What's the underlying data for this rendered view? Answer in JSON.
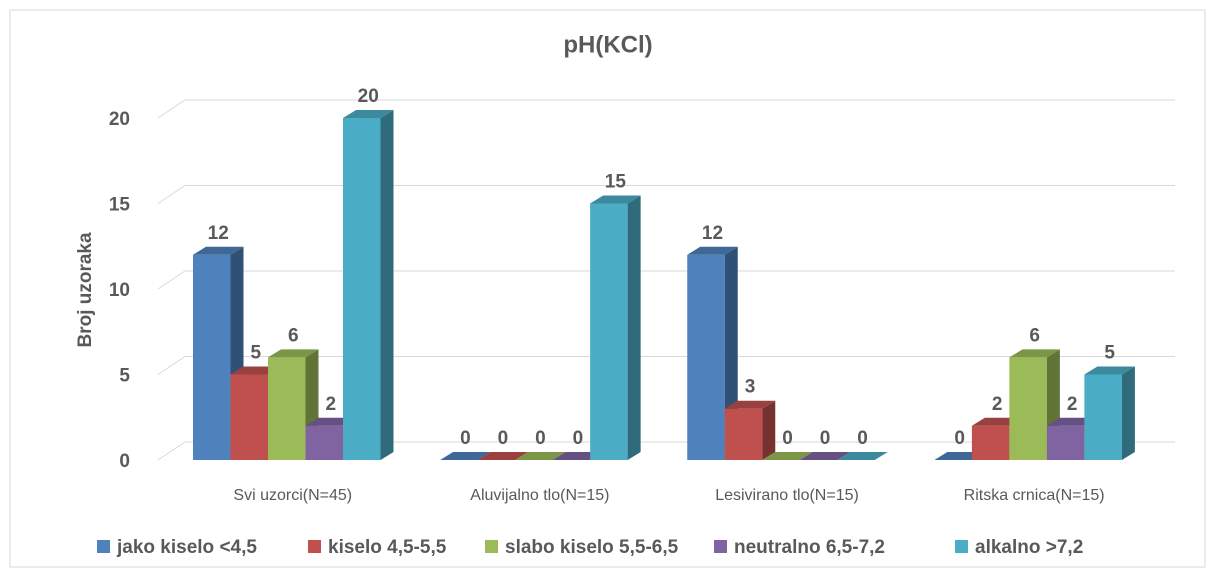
{
  "chart_data": {
    "type": "bar3d",
    "title": "pH(KCl)",
    "y_label": "Broj uzoraka",
    "categories": [
      "Svi uzorci(N=45)",
      "Aluvijalno tlo(N=15)",
      "Lesivirano tlo(N=15)",
      "Ritska crnica(N=15)"
    ],
    "series": [
      {
        "name": "jako kiselo <4,5",
        "color": "#4f81bd",
        "values": [
          12,
          0,
          12,
          0
        ]
      },
      {
        "name": "kiselo 4,5-5,5",
        "color": "#c0504d",
        "values": [
          5,
          0,
          3,
          2
        ]
      },
      {
        "name": "slabo kiselo 5,5-6,5",
        "color": "#9bbb59",
        "values": [
          6,
          0,
          0,
          6
        ]
      },
      {
        "name": "neutralno 6,5-7,2",
        "color": "#8064a2",
        "values": [
          2,
          0,
          0,
          2
        ]
      },
      {
        "name": "alkalno >7,2",
        "color": "#4bacc6",
        "values": [
          20,
          15,
          0,
          5
        ]
      }
    ],
    "ylim": [
      0,
      20
    ],
    "yticks": [
      0,
      5,
      10,
      15,
      20
    ],
    "grid": true,
    "legend": "bottom"
  }
}
